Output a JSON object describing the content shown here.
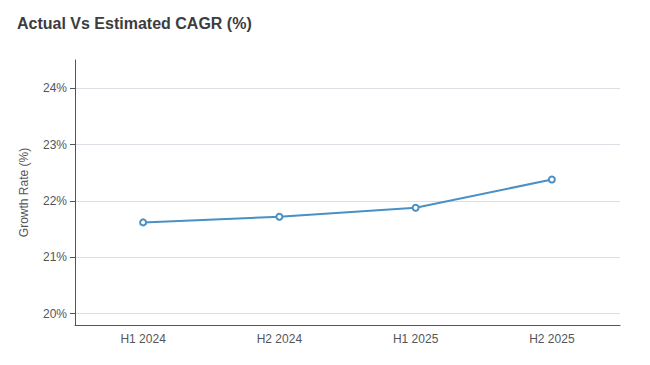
{
  "chart_data": {
    "type": "line",
    "title": "Actual Vs Estimated CAGR (%)",
    "y_label": "Growth Rate (%)",
    "categories": [
      "H1 2024",
      "H2 2024",
      "H1 2025",
      "H2 2025"
    ],
    "values": [
      21.62,
      21.72,
      21.88,
      22.38
    ],
    "color": "#4a90c4",
    "ylim": [
      19.8,
      24.5
    ],
    "yticks": [
      {
        "value": 20,
        "label": "20%"
      },
      {
        "value": 21,
        "label": "21%"
      },
      {
        "value": 22,
        "label": "22%"
      },
      {
        "value": 23,
        "label": "23%"
      },
      {
        "value": 24,
        "label": "24%"
      }
    ],
    "grid": true
  }
}
